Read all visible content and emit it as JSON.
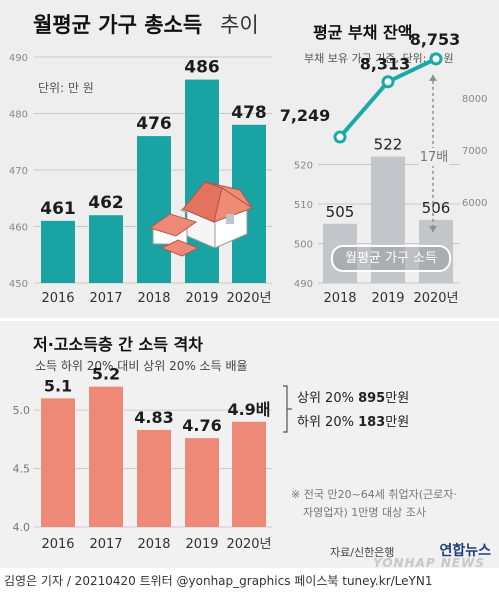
{
  "colors": {
    "teal": "#19a3a3",
    "salmon": "#ee8877",
    "grey_bar": "#c3c6ca",
    "line": "#1aa9a9",
    "background": "#efefef"
  },
  "chart_data": [
    {
      "type": "bar",
      "title": "월평균 가구 총소득 추이",
      "title_main": "월평균 가구 총소득",
      "title_tail": "추이",
      "unit_label": "단위: 만 원",
      "categories": [
        "2016",
        "2017",
        "2018",
        "2019",
        "2020년"
      ],
      "values": [
        461,
        462,
        476,
        486,
        478
      ],
      "value_labels": [
        "461",
        "462",
        "476",
        "486",
        "478"
      ],
      "ylim": [
        450,
        490
      ],
      "yticks": [
        450,
        460,
        470,
        480,
        490
      ],
      "grid": true,
      "icon": "house-icon"
    },
    {
      "type": "bar",
      "title": "평균 부채 잔액",
      "subtitle": "부채 보유 가구 기준, 단위: 만 원",
      "categories": [
        "2018",
        "2019",
        "2020년"
      ],
      "series": [
        {
          "name": "월평균 가구 소득",
          "type": "bar",
          "axis": "left",
          "values": [
            505,
            522,
            506
          ]
        },
        {
          "type": "line",
          "axis": "right",
          "values": [
            7249,
            8313,
            8753
          ]
        }
      ],
      "bar_labels": [
        "505",
        "522",
        "506"
      ],
      "line_labels": [
        "7,249",
        "8,313",
        "8,753"
      ],
      "ylim_left": [
        490,
        530
      ],
      "yticks_left": [
        490,
        500,
        510,
        520
      ],
      "ylim_right": [
        6000,
        9000
      ],
      "yticks_right": [
        6000,
        7000,
        8000
      ],
      "annotation": "17배",
      "legend": "bottom-center",
      "grid": true
    },
    {
      "type": "bar",
      "title": "저·고소득층 간 소득 격차",
      "subtitle": "소득 하위 20% 대비 상위 20% 소득 배율",
      "categories": [
        "2016",
        "2017",
        "2018",
        "2019",
        "2020년"
      ],
      "values": [
        5.1,
        5.2,
        4.83,
        4.76,
        4.9
      ],
      "value_labels": [
        "5.1",
        "5.2",
        "4.83",
        "4.76",
        "4.9"
      ],
      "last_label_suffix": "배",
      "ylim": [
        4.0,
        5.3
      ],
      "yticks": [
        4.0,
        4.5,
        5.0
      ],
      "grid": true,
      "annotation": {
        "top_prefix": "상위 20%",
        "top_value": "895",
        "top_unit": "만원",
        "bottom_prefix": "하위 20%",
        "bottom_value": "183",
        "bottom_unit": "만원"
      },
      "note_line1": "※ 전국 만20~64세 취업자(근로자·",
      "note_line2": "자영업자) 1만명 대상 조사"
    }
  ],
  "footer": {
    "credit": "김영은 기자 / 20210420  트위터 @yonhap_graphics  페이스북 tuney.kr/LeYN1",
    "source": "자료/신한은행",
    "logo": "연합뉴스",
    "watermark": "YONHAP NEWS"
  }
}
